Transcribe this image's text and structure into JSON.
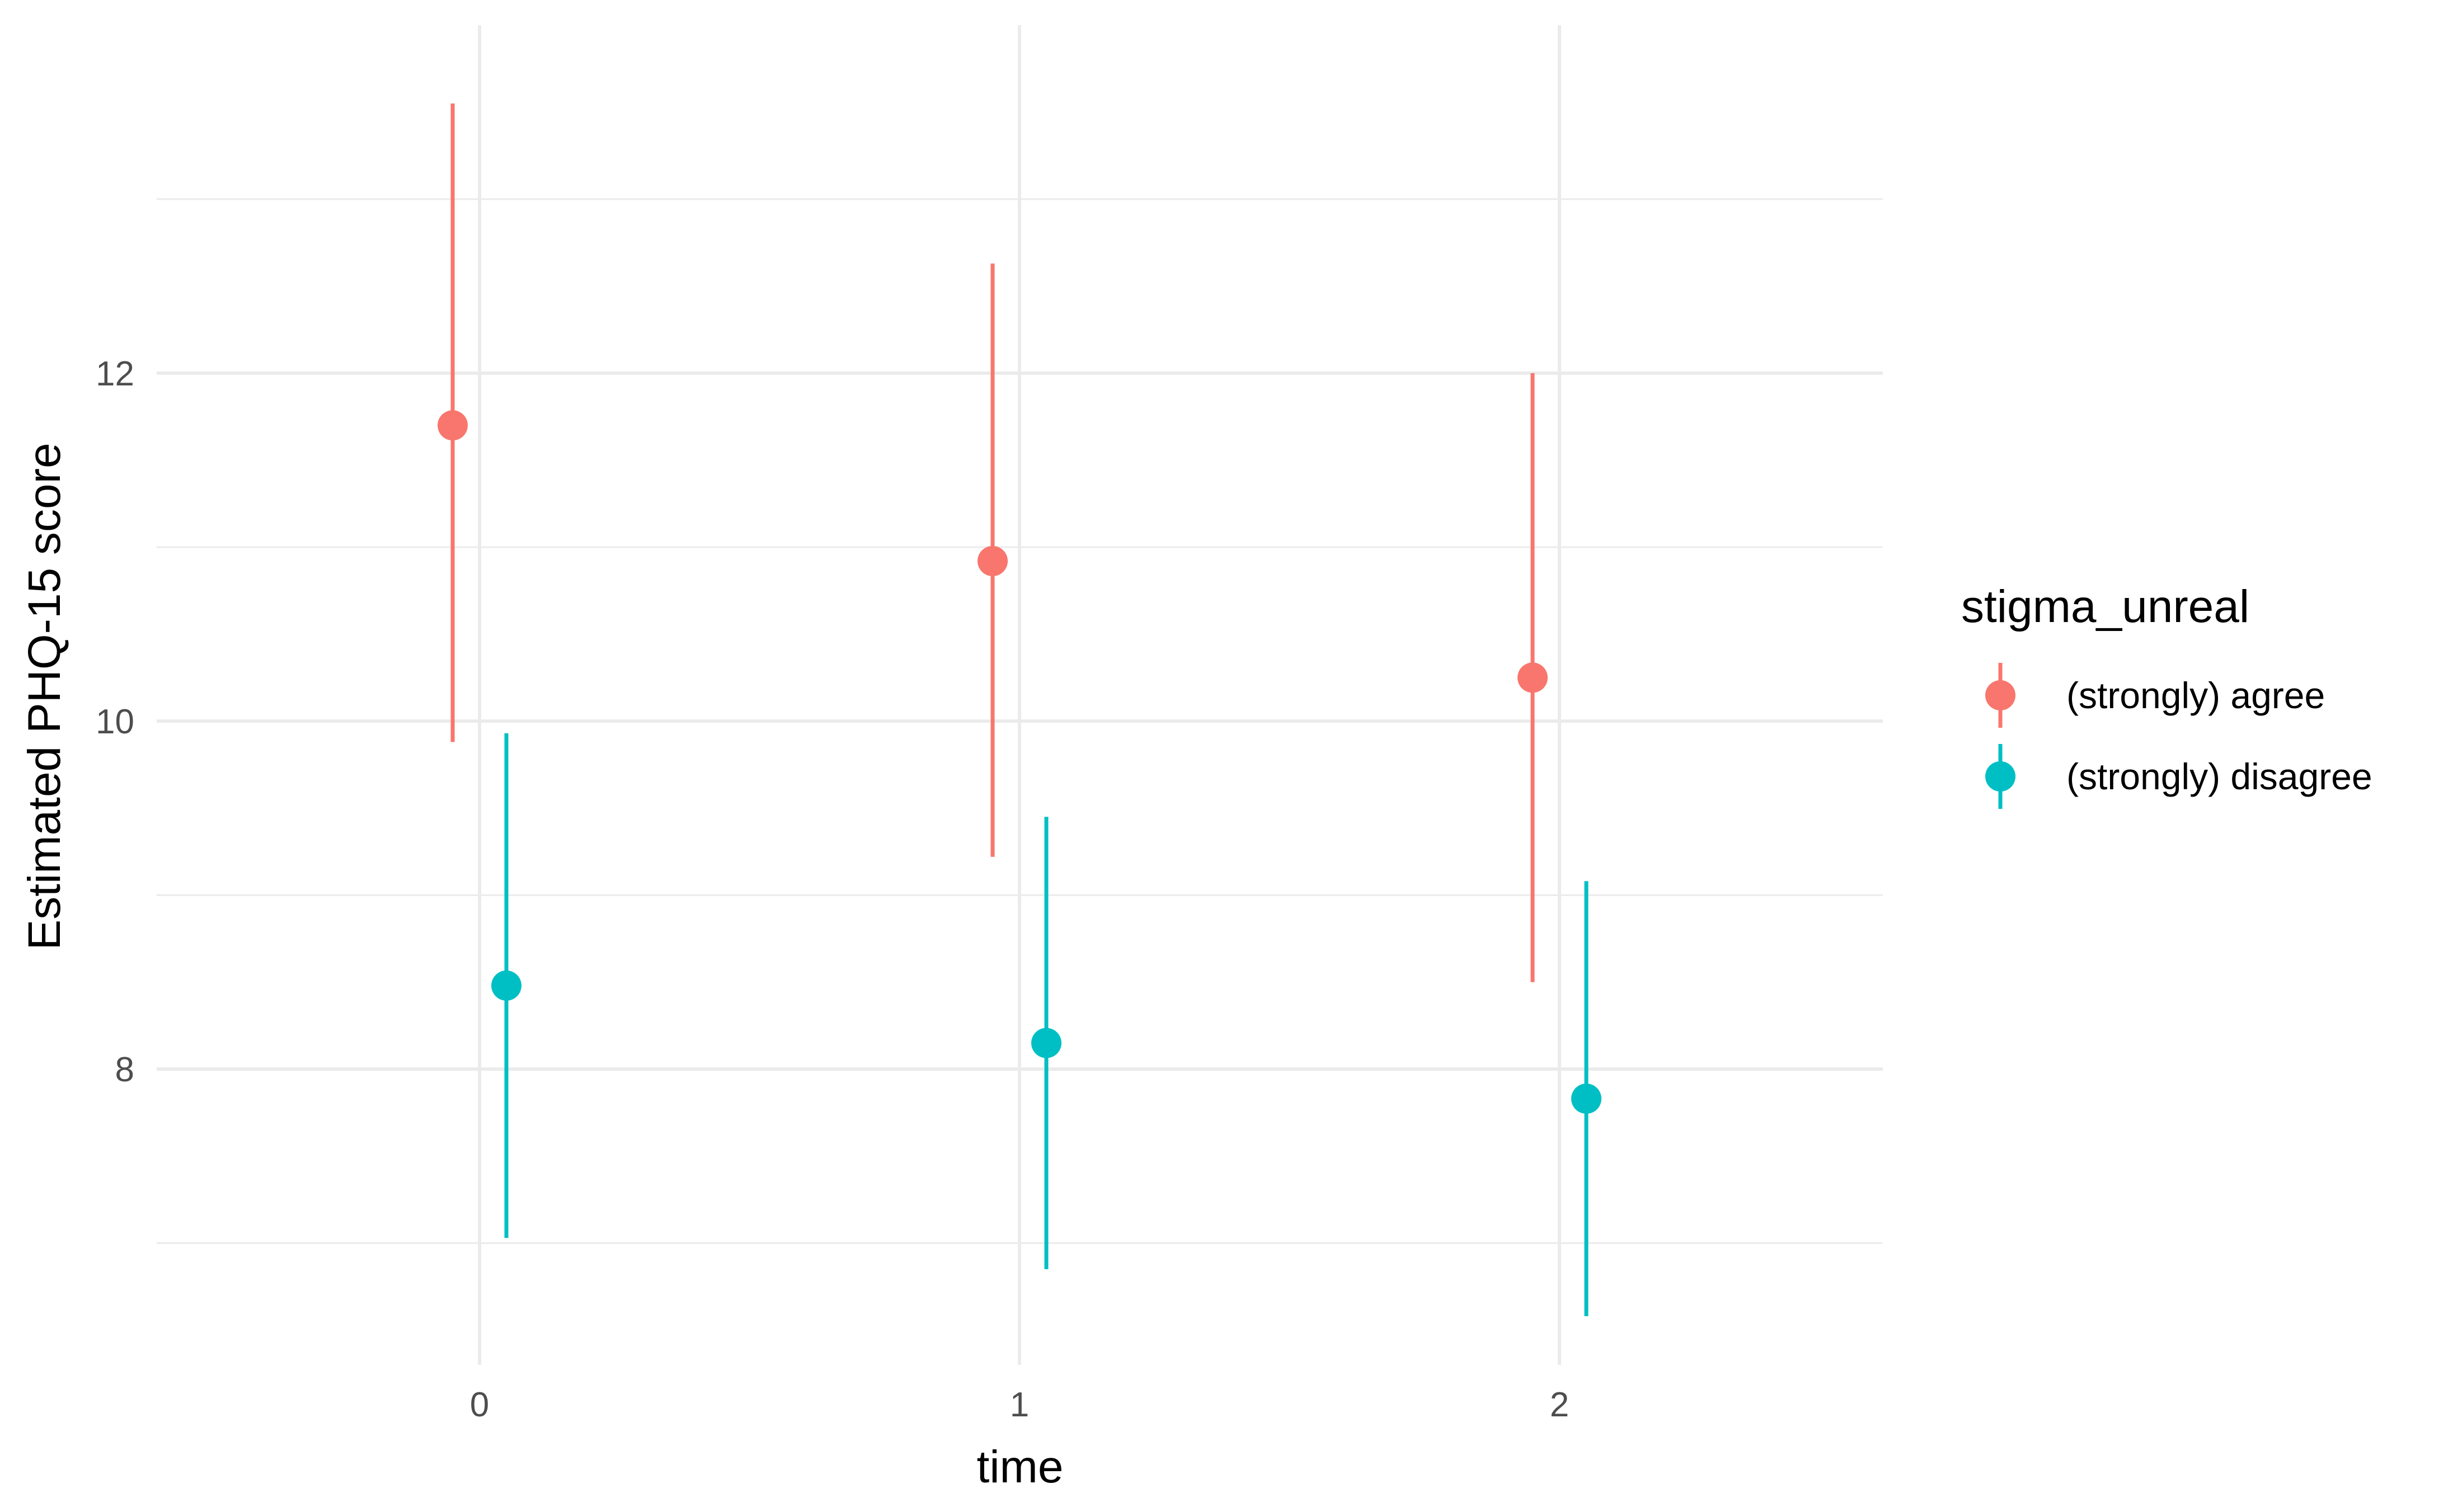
{
  "chart_data": {
    "type": "scatter",
    "subtype": "point-range",
    "title": "",
    "xlabel": "time",
    "ylabel": "Estimated PHQ-15 score",
    "x_categories": [
      "0",
      "1",
      "2"
    ],
    "y_ticks": [
      8,
      10,
      12
    ],
    "y_tick_labels": [
      "8",
      "10",
      "12"
    ],
    "ylim": [
      6.3,
      14.0
    ],
    "grid": true,
    "legend": {
      "title": "stigma_unreal",
      "position": "right"
    },
    "series": [
      {
        "name": "(strongly) agree",
        "color": "#F8766D",
        "points": [
          {
            "x": "0",
            "y": 11.7,
            "lower": 9.88,
            "upper": 13.55
          },
          {
            "x": "1",
            "y": 10.92,
            "lower": 9.22,
            "upper": 12.63
          },
          {
            "x": "2",
            "y": 10.25,
            "lower": 8.5,
            "upper": 12.0
          }
        ]
      },
      {
        "name": "(strongly) disagree",
        "color": "#00BFC4",
        "points": [
          {
            "x": "0",
            "y": 8.48,
            "lower": 7.03,
            "upper": 9.93
          },
          {
            "x": "1",
            "y": 8.15,
            "lower": 6.85,
            "upper": 9.45
          },
          {
            "x": "2",
            "y": 7.83,
            "lower": 6.58,
            "upper": 9.08
          }
        ]
      }
    ]
  }
}
